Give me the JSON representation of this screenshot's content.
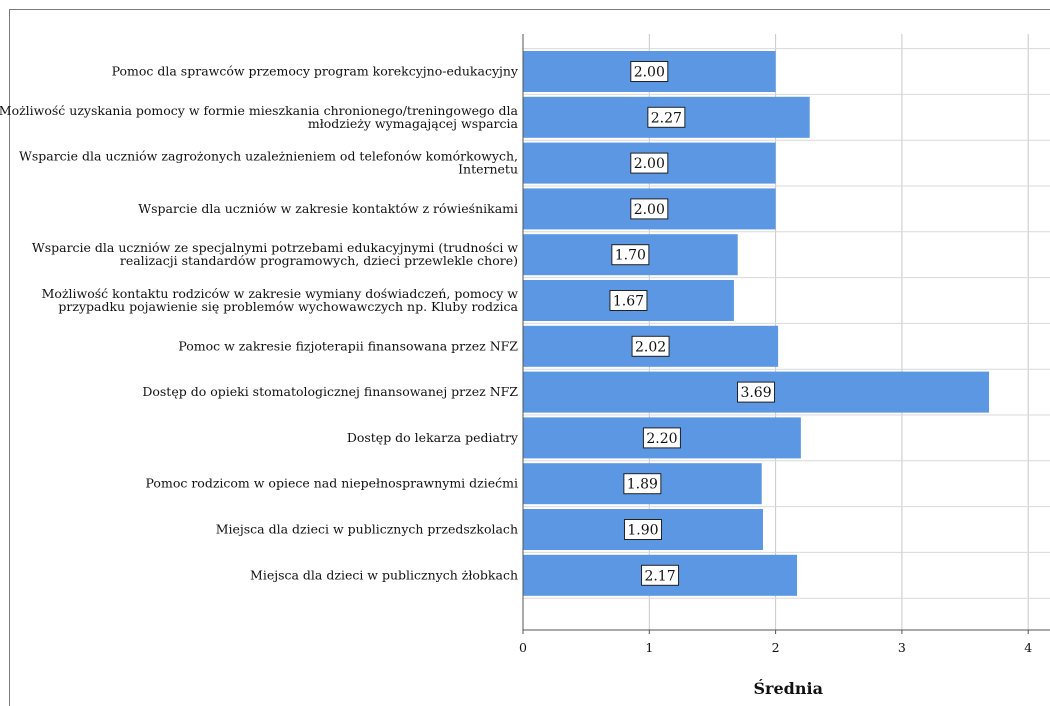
{
  "chart_data": {
    "type": "bar",
    "orientation": "horizontal",
    "categories": [
      "Pomoc dla sprawców przemocy program korekcyjno-edukacyjny",
      "Możliwość uzyskania pomocy w formie mieszkania chronionego/treningowego dla młodzieży wymagającej wsparcia",
      "Wsparcie dla uczniów zagrożonych uzależnieniem od telefonów komórkowych, Internetu",
      "Wsparcie dla uczniów w zakresie kontaktów z rówieśnikami",
      "Wsparcie dla uczniów ze specjalnymi potrzebami edukacyjnymi (trudności w realizacji standardów programowych, dzieci przewlekle chore)",
      "Możliwość kontaktu rodziców w zakresie wymiany doświadczeń, pomocy w przypadku pojawienie się problemów wychowawczych np. Kluby rodzica",
      "Pomoc w zakresie fizjoterapii finansowana przez NFZ",
      "Dostęp do opieki stomatologicznej finansowanej przez NFZ",
      "Dostęp do lekarza pediatry",
      "Pomoc rodzicom w opiece nad niepełnosprawnymi dziećmi",
      "Miejsca dla dzieci w publicznych przedszkolach",
      "Miejsca dla dzieci w publicznych żłobkach"
    ],
    "category_lines": [
      [
        "Pomoc dla sprawców przemocy program korekcyjno-edukacyjny"
      ],
      [
        "Możliwość uzyskania pomocy w formie mieszkania chronionego/treningowego dla",
        "młodzieży wymagającej wsparcia"
      ],
      [
        "Wsparcie dla uczniów zagrożonych uzależnieniem od telefonów komórkowych,",
        "Internetu"
      ],
      [
        "Wsparcie dla uczniów w zakresie kontaktów z rówieśnikami"
      ],
      [
        "Wsparcie dla uczniów ze specjalnymi potrzebami edukacyjnymi (trudności w",
        "realizacji standardów programowych, dzieci przewlekle chore)"
      ],
      [
        "Możliwość kontaktu rodziców w zakresie wymiany doświadczeń, pomocy w",
        "przypadku pojawienie się problemów wychowawczych np. Kluby rodzica"
      ],
      [
        "Pomoc w zakresie fizjoterapii finansowana przez NFZ"
      ],
      [
        "Dostęp do opieki stomatologicznej finansowanej przez NFZ"
      ],
      [
        "Dostęp do lekarza pediatry"
      ],
      [
        "Pomoc rodzicom w opiece nad niepełnosprawnymi dziećmi"
      ],
      [
        "Miejsca dla dzieci w publicznych przedszkolach"
      ],
      [
        "Miejsca dla dzieci w publicznych żłobkach"
      ]
    ],
    "values": [
      2.0,
      2.27,
      2.0,
      2.0,
      1.7,
      1.67,
      2.02,
      3.69,
      2.2,
      1.89,
      1.9,
      2.17
    ],
    "value_labels": [
      "2.00",
      "2.27",
      "2.00",
      "2.00",
      "1.70",
      "1.67",
      "2.02",
      "3.69",
      "2.20",
      "1.89",
      "1.90",
      "2.17"
    ],
    "xticks": [
      "0",
      "1",
      "2",
      "3",
      "4"
    ],
    "xlim": [
      0,
      4.2
    ],
    "xlabel": "Średnia",
    "ylabel": "",
    "title": "",
    "grid": true,
    "bar_color": "#5b97e3",
    "gridline_color": "#c8c8c8"
  }
}
